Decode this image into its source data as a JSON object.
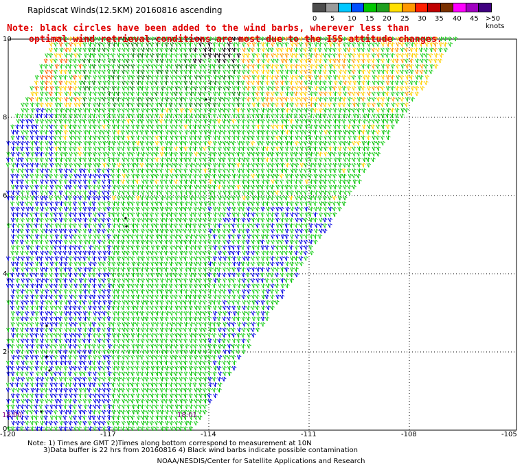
{
  "title": "Rapidscat Winds(12.5KM) 20160816 ascending",
  "note_line1": "Note: black circles have been added to the wind barbs, wherever less than",
  "note_line2": "optimal wind retrieval conditions are most due to the ISS attitude changes.",
  "legend": {
    "labels": [
      "0",
      "5",
      "10",
      "15",
      "20",
      "25",
      "30",
      "35",
      "40",
      "45",
      ">50 knots"
    ],
    "colors": [
      "#4d4d4d",
      "#9a9a9a",
      "#00c8ff",
      "#0050ff",
      "#00c800",
      "#20a020",
      "#ffe000",
      "#ff9900",
      "#ff2000",
      "#c00000",
      "#7a3000",
      "#ff00ff",
      "#a000c0",
      "#400080"
    ]
  },
  "lon_ticks": [
    "-120",
    "-117",
    "-114",
    "-111",
    "-108",
    "-105"
  ],
  "lat_ticks": [
    "10",
    "8",
    "6",
    "4",
    "2",
    "0"
  ],
  "time_labels": [
    "18:00",
    "18:01"
  ],
  "footer_line1": "Note: 1) Times are GMT 2)Times along bottom correspond to measurement at 10N",
  "footer_line2": "3)Data buffer is 22 hrs from 20160816 4) Black wind barbs indicate possible contamination",
  "footer_line3": "NOAA/NESDIS/Center for Satellite Applications and Research"
}
